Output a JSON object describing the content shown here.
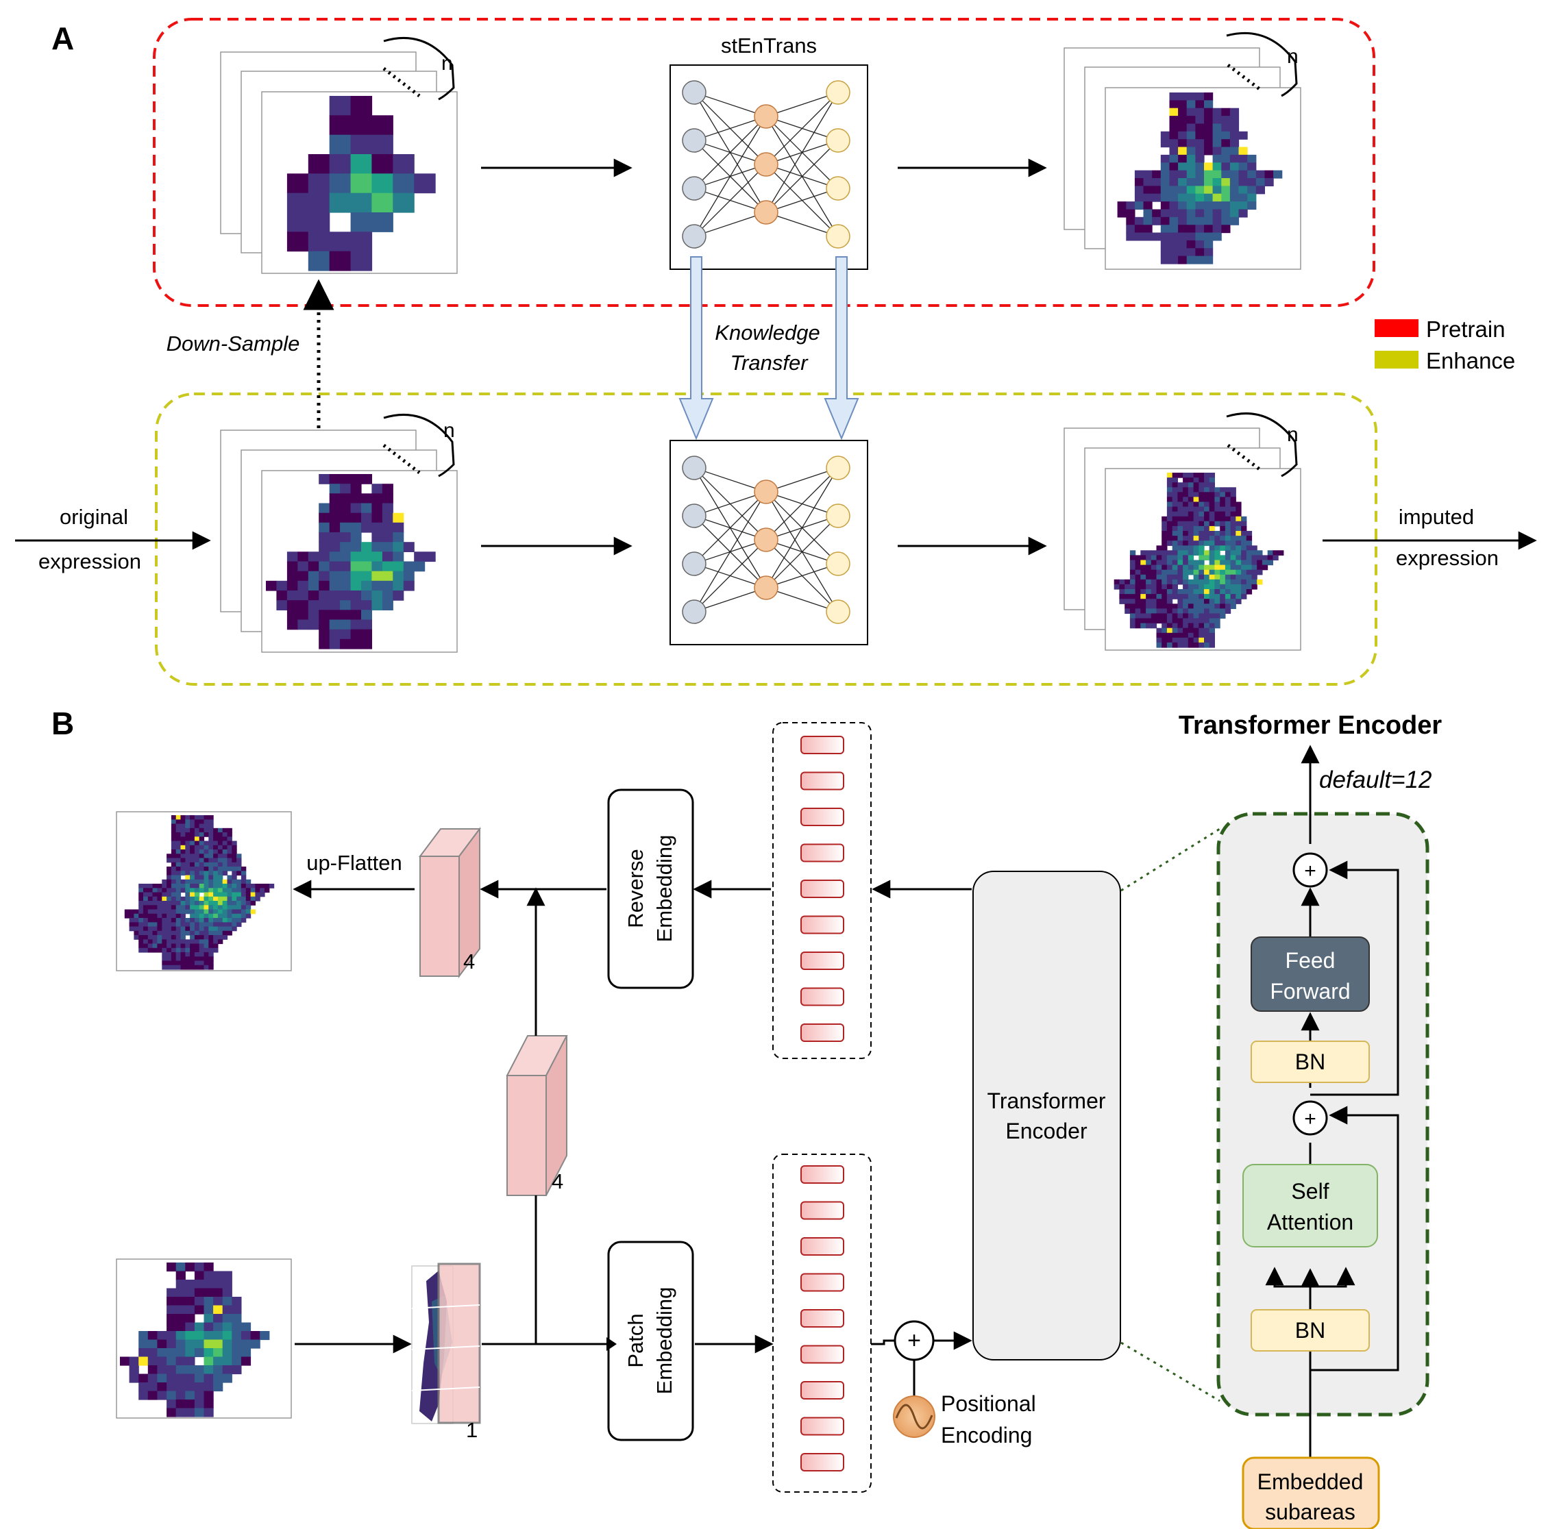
{
  "panelA": {
    "label": "A",
    "model_title": "stEnTrans",
    "stack_count_label": "n",
    "down_sample_label": "Down-Sample",
    "knowledge_transfer_line1": "Knowledge",
    "knowledge_transfer_line2": "Transfer",
    "input_label_line1": "original",
    "input_label_line2": "expression",
    "output_label_line1": "imputed",
    "output_label_line2": "expression",
    "legend": [
      {
        "label": "Pretrain",
        "color": "#ff0000"
      },
      {
        "label": "Enhance",
        "color": "#cccc00"
      }
    ]
  },
  "panelB": {
    "label": "B",
    "encoder_heading": "Transformer Encoder",
    "repeat_label": "default=12",
    "up_flatten_label": "up-Flatten",
    "reverse_embedding_line1": "Reverse",
    "reverse_embedding_line2": "Embedding",
    "patch_embedding_line1": "Patch",
    "patch_embedding_line2": "Embedding",
    "transformer_encoder_line1": "Transformer",
    "transformer_encoder_line2": "Encoder",
    "positional_encoding_line1": "Positional",
    "positional_encoding_line2": "Encoding",
    "dim_upper": "4",
    "dim_middle": "4",
    "dim_lower": "1",
    "plus_symbol": "+",
    "block": {
      "feed_forward_line1": "Feed",
      "feed_forward_line2": "Forward",
      "bn_upper": "BN",
      "self_attention_line1": "Self",
      "self_attention_line2": "Attention",
      "bn_lower": "BN",
      "input_line1": "Embedded",
      "input_line2": "subareas"
    }
  },
  "colors": {
    "pretrain_border": "#ee1111",
    "enhance_border": "#c8c81e",
    "block_border": "#2d5e1e",
    "heatmap_dark": "#440154",
    "heatmap_mid": "#21908d",
    "heatmap_high": "#fde725",
    "token_border": "#b22222",
    "slab_fill": "#f4c6c6",
    "feed_forward_fill": "#5a6b7c",
    "self_attention_fill": "#d5ead0",
    "bn_fill": "#fff2cc",
    "embedded_fill": "#fde0c2",
    "arrow_blue": "#dbe8f8"
  }
}
